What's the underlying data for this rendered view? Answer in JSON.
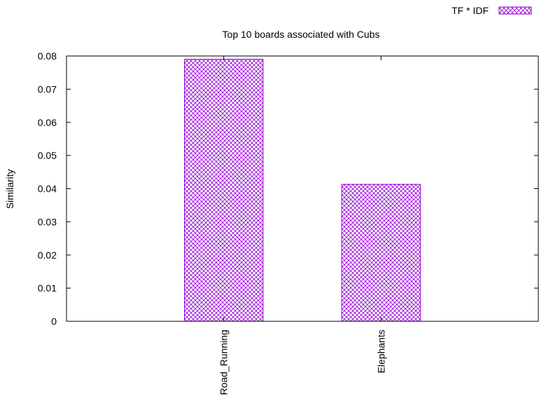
{
  "chart_data": {
    "type": "bar",
    "title": "Top 10 boards associated with Cubs",
    "xlabel": "",
    "ylabel": "Similarity",
    "categories": [
      "Road_Running",
      "Elephants"
    ],
    "series": [
      {
        "name": "TF * IDF",
        "values": [
          0.079,
          0.0413
        ]
      }
    ],
    "ylim": [
      0,
      0.08
    ],
    "yticks": [
      "0",
      "0.01",
      "0.02",
      "0.03",
      "0.04",
      "0.05",
      "0.06",
      "0.07",
      "0.08"
    ],
    "grid": false,
    "legend_position": "top-right",
    "bar_color": "#9400d3",
    "bar_fill": "crosshatch"
  }
}
